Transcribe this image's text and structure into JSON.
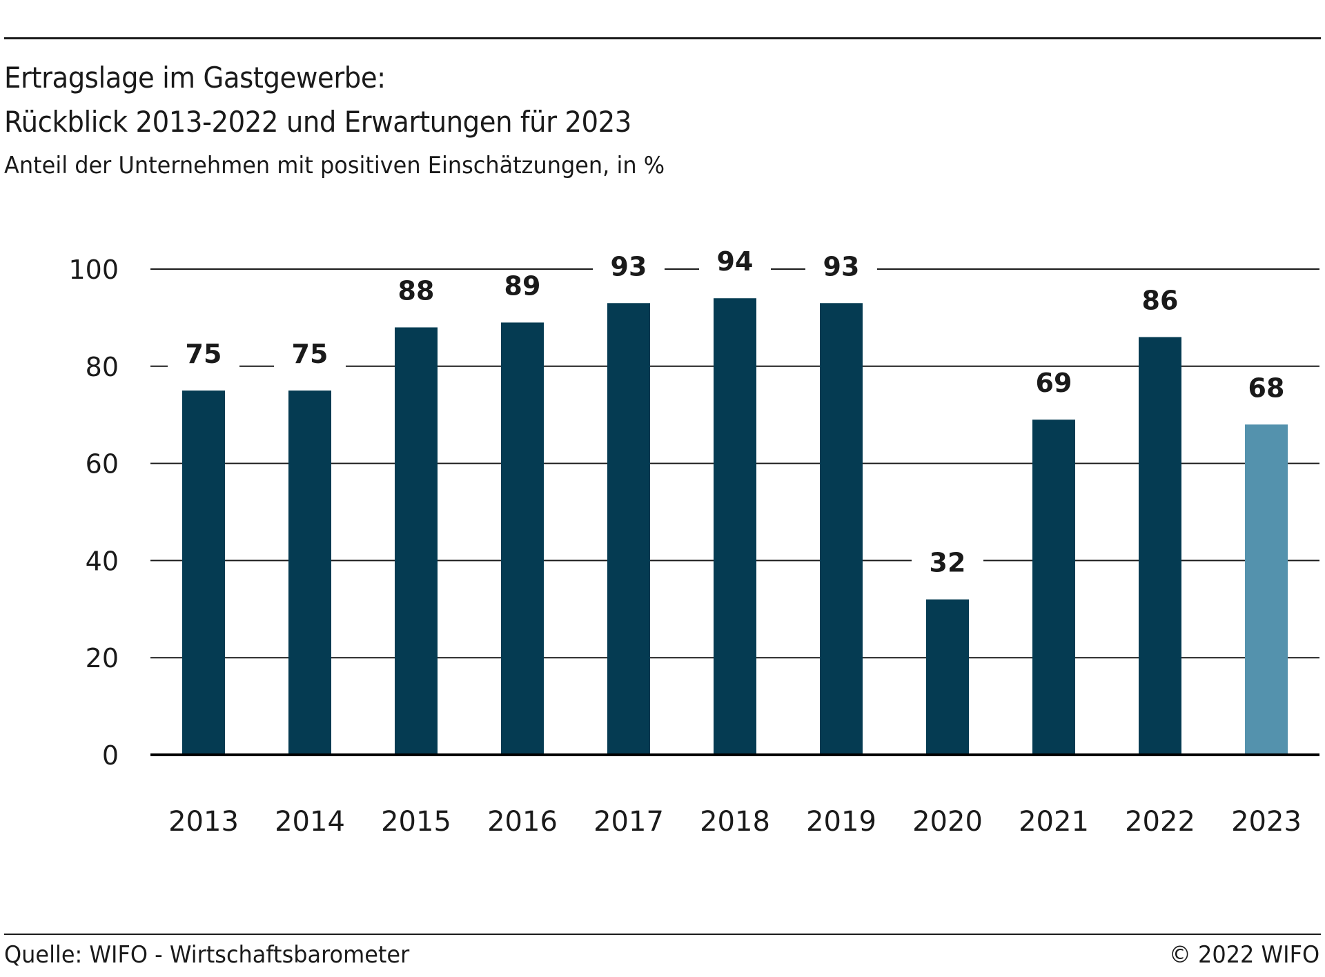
{
  "header": {
    "title_line1": "Ertragslage im Gastgewerbe:",
    "title_line2": "Rückblick 2013-2022 und Erwartungen für 2023",
    "subtitle": "Anteil der Unternehmen mit positiven Einschätzungen, in %"
  },
  "footer": {
    "source": "Quelle: WIFO - Wirtschaftsbarometer",
    "copyright": "© 2022 WIFO"
  },
  "colors": {
    "bar": "#053b52",
    "bar_highlight": "#5492ad",
    "grid": "#1a1a1a",
    "text": "#1a1a1a"
  },
  "chart_data": {
    "type": "bar",
    "title": "Ertragslage im Gastgewerbe: Rückblick 2013-2022 und Erwartungen für 2023",
    "subtitle": "Anteil der Unternehmen mit positiven Einschätzungen, in %",
    "categories": [
      "2013",
      "2014",
      "2015",
      "2016",
      "2017",
      "2018",
      "2019",
      "2020",
      "2021",
      "2022",
      "2023"
    ],
    "values": [
      75,
      75,
      88,
      89,
      93,
      94,
      93,
      32,
      69,
      86,
      68
    ],
    "highlight_categories": [
      "2023"
    ],
    "ylim": [
      0,
      100
    ],
    "yticks": [
      0,
      20,
      40,
      60,
      80,
      100
    ],
    "grid": true,
    "data_labels": true,
    "xlabel": "",
    "ylabel": ""
  }
}
